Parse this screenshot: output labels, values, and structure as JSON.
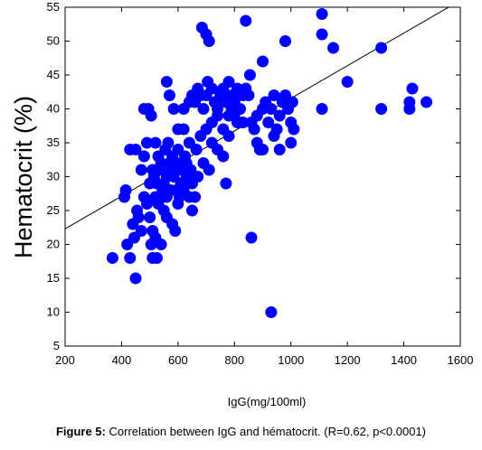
{
  "caption": {
    "label": "Figure 5:",
    "text": "Correlation between IgG and hématocrit. (R=0.62, p<0.0001)"
  },
  "chart_data": {
    "type": "scatter",
    "title": "",
    "xlabel": "IgG(mg/100ml)",
    "ylabel": "Hematocrit (%)",
    "xlim": [
      200,
      1600
    ],
    "ylim": [
      5,
      55
    ],
    "xticks": [
      200,
      400,
      600,
      800,
      1000,
      1200,
      1400,
      1600
    ],
    "yticks": [
      5,
      10,
      15,
      20,
      25,
      30,
      35,
      40,
      45,
      50,
      55
    ],
    "grid": false,
    "legend": "none",
    "point_color": "#0000ff",
    "line_color": "#000000",
    "series": [
      {
        "points": [
          [
            368,
            18
          ],
          [
            420,
            20
          ],
          [
            430,
            18
          ],
          [
            450,
            15
          ],
          [
            445,
            21
          ],
          [
            440,
            23
          ],
          [
            460,
            24
          ],
          [
            470,
            22
          ],
          [
            455,
            25
          ],
          [
            410,
            27
          ],
          [
            415,
            28
          ],
          [
            430,
            34
          ],
          [
            450,
            34
          ],
          [
            470,
            31
          ],
          [
            480,
            33
          ],
          [
            500,
            29
          ],
          [
            490,
            35
          ],
          [
            480,
            40
          ],
          [
            495,
            40
          ],
          [
            505,
            39
          ],
          [
            480,
            27
          ],
          [
            490,
            26
          ],
          [
            500,
            24
          ],
          [
            510,
            22
          ],
          [
            520,
            21
          ],
          [
            505,
            20
          ],
          [
            510,
            18
          ],
          [
            525,
            18
          ],
          [
            540,
            20
          ],
          [
            550,
            25
          ],
          [
            560,
            24
          ],
          [
            520,
            27
          ],
          [
            530,
            26
          ],
          [
            545,
            28
          ],
          [
            560,
            27
          ],
          [
            575,
            28
          ],
          [
            580,
            23
          ],
          [
            590,
            22
          ],
          [
            600,
            26
          ],
          [
            610,
            29
          ],
          [
            620,
            28
          ],
          [
            630,
            30
          ],
          [
            640,
            27
          ],
          [
            650,
            25
          ],
          [
            660,
            27
          ],
          [
            670,
            30
          ],
          [
            560,
            30
          ],
          [
            570,
            32
          ],
          [
            580,
            33
          ],
          [
            590,
            31
          ],
          [
            600,
            34
          ],
          [
            610,
            32
          ],
          [
            625,
            33
          ],
          [
            520,
            35
          ],
          [
            530,
            33
          ],
          [
            540,
            32
          ],
          [
            510,
            31
          ],
          [
            515,
            30
          ],
          [
            525,
            29
          ],
          [
            535,
            31
          ],
          [
            550,
            29
          ],
          [
            555,
            34
          ],
          [
            565,
            35
          ],
          [
            575,
            31
          ],
          [
            585,
            30
          ],
          [
            595,
            28
          ],
          [
            605,
            27
          ],
          [
            615,
            31
          ],
          [
            630,
            32
          ],
          [
            645,
            31
          ],
          [
            650,
            29
          ],
          [
            665,
            34
          ],
          [
            680,
            36
          ],
          [
            690,
            32
          ],
          [
            710,
            31
          ],
          [
            720,
            35
          ],
          [
            740,
            34
          ],
          [
            760,
            37
          ],
          [
            780,
            36
          ],
          [
            800,
            39
          ],
          [
            790,
            40
          ],
          [
            810,
            38
          ],
          [
            760,
            33
          ],
          [
            770,
            29
          ],
          [
            560,
            44
          ],
          [
            570,
            42
          ],
          [
            585,
            40
          ],
          [
            600,
            37
          ],
          [
            620,
            40
          ],
          [
            640,
            41
          ],
          [
            650,
            42
          ],
          [
            660,
            41
          ],
          [
            670,
            43
          ],
          [
            680,
            42
          ],
          [
            690,
            40
          ],
          [
            700,
            42
          ],
          [
            705,
            44
          ],
          [
            720,
            43
          ],
          [
            730,
            41
          ],
          [
            740,
            40
          ],
          [
            750,
            42
          ],
          [
            760,
            43
          ],
          [
            770,
            41
          ],
          [
            780,
            44
          ],
          [
            790,
            42
          ],
          [
            800,
            41
          ],
          [
            810,
            43
          ],
          [
            820,
            40
          ],
          [
            830,
            42
          ],
          [
            840,
            43
          ],
          [
            850,
            42
          ],
          [
            855,
            45
          ],
          [
            860,
            38
          ],
          [
            870,
            37
          ],
          [
            880,
            39
          ],
          [
            890,
            34
          ],
          [
            900,
            40
          ],
          [
            910,
            41
          ],
          [
            920,
            38
          ],
          [
            930,
            40
          ],
          [
            940,
            42
          ],
          [
            950,
            37
          ],
          [
            960,
            39
          ],
          [
            970,
            41
          ],
          [
            980,
            42
          ],
          [
            990,
            40
          ],
          [
            1000,
            38
          ],
          [
            1005,
            41
          ],
          [
            1010,
            37
          ],
          [
            1000,
            35
          ],
          [
            960,
            34
          ],
          [
            940,
            36
          ],
          [
            900,
            34
          ],
          [
            880,
            35
          ],
          [
            685,
            52
          ],
          [
            700,
            51
          ],
          [
            710,
            50
          ],
          [
            840,
            53
          ],
          [
            980,
            50
          ],
          [
            900,
            47
          ],
          [
            1110,
            54
          ],
          [
            1110,
            51
          ],
          [
            1150,
            49
          ],
          [
            1320,
            49
          ],
          [
            1200,
            44
          ],
          [
            1110,
            40
          ],
          [
            1320,
            40
          ],
          [
            1420,
            41
          ],
          [
            1420,
            40
          ],
          [
            1430,
            43
          ],
          [
            1480,
            41
          ],
          [
            860,
            21
          ],
          [
            930,
            10
          ],
          [
            620,
            37
          ],
          [
            640,
            35
          ],
          [
            700,
            37
          ],
          [
            720,
            38
          ],
          [
            740,
            39
          ],
          [
            780,
            39
          ],
          [
            830,
            38
          ]
        ]
      }
    ],
    "trendline": {
      "x": [
        200,
        1600
      ],
      "y": [
        22.3,
        56
      ]
    }
  }
}
